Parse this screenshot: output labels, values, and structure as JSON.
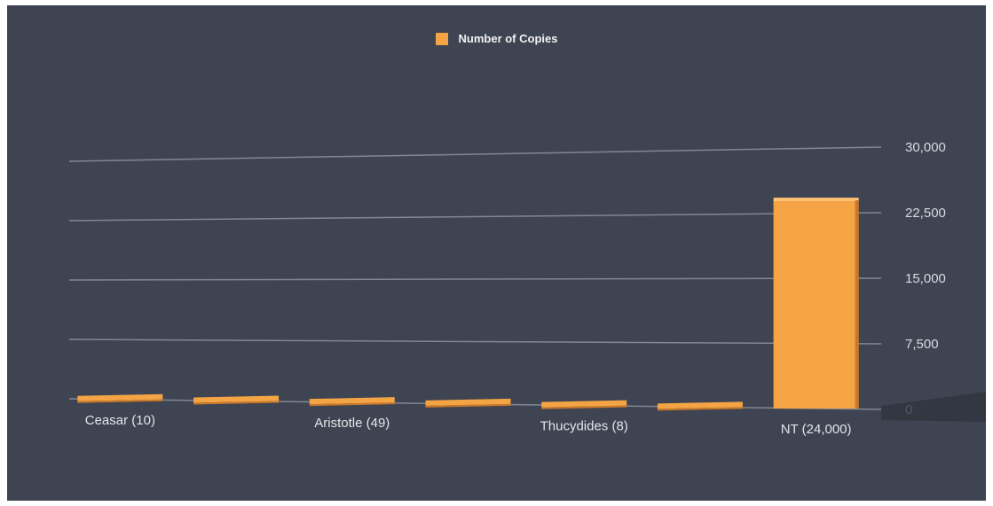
{
  "chart_data": {
    "type": "bar",
    "categories": [
      "Ceasar (10)",
      "",
      "Aristotle (49)",
      "",
      "Thucydides (8)",
      "",
      "NT (24,000)"
    ],
    "series": [
      {
        "name": "Number of Copies",
        "values": [
          10,
          7,
          49,
          20,
          8,
          210,
          24000
        ]
      }
    ],
    "ylim": [
      0,
      30000
    ],
    "yticks": [
      "0",
      "7,500",
      "15,000",
      "22,500",
      "30,000"
    ],
    "legend": {
      "label": "Number of Copies",
      "position": "top"
    },
    "grid": true,
    "colors": {
      "bar": "#f4a444",
      "bar_shade": "#c9782a",
      "background": "#3e4451",
      "grid": "#8a9099"
    }
  }
}
